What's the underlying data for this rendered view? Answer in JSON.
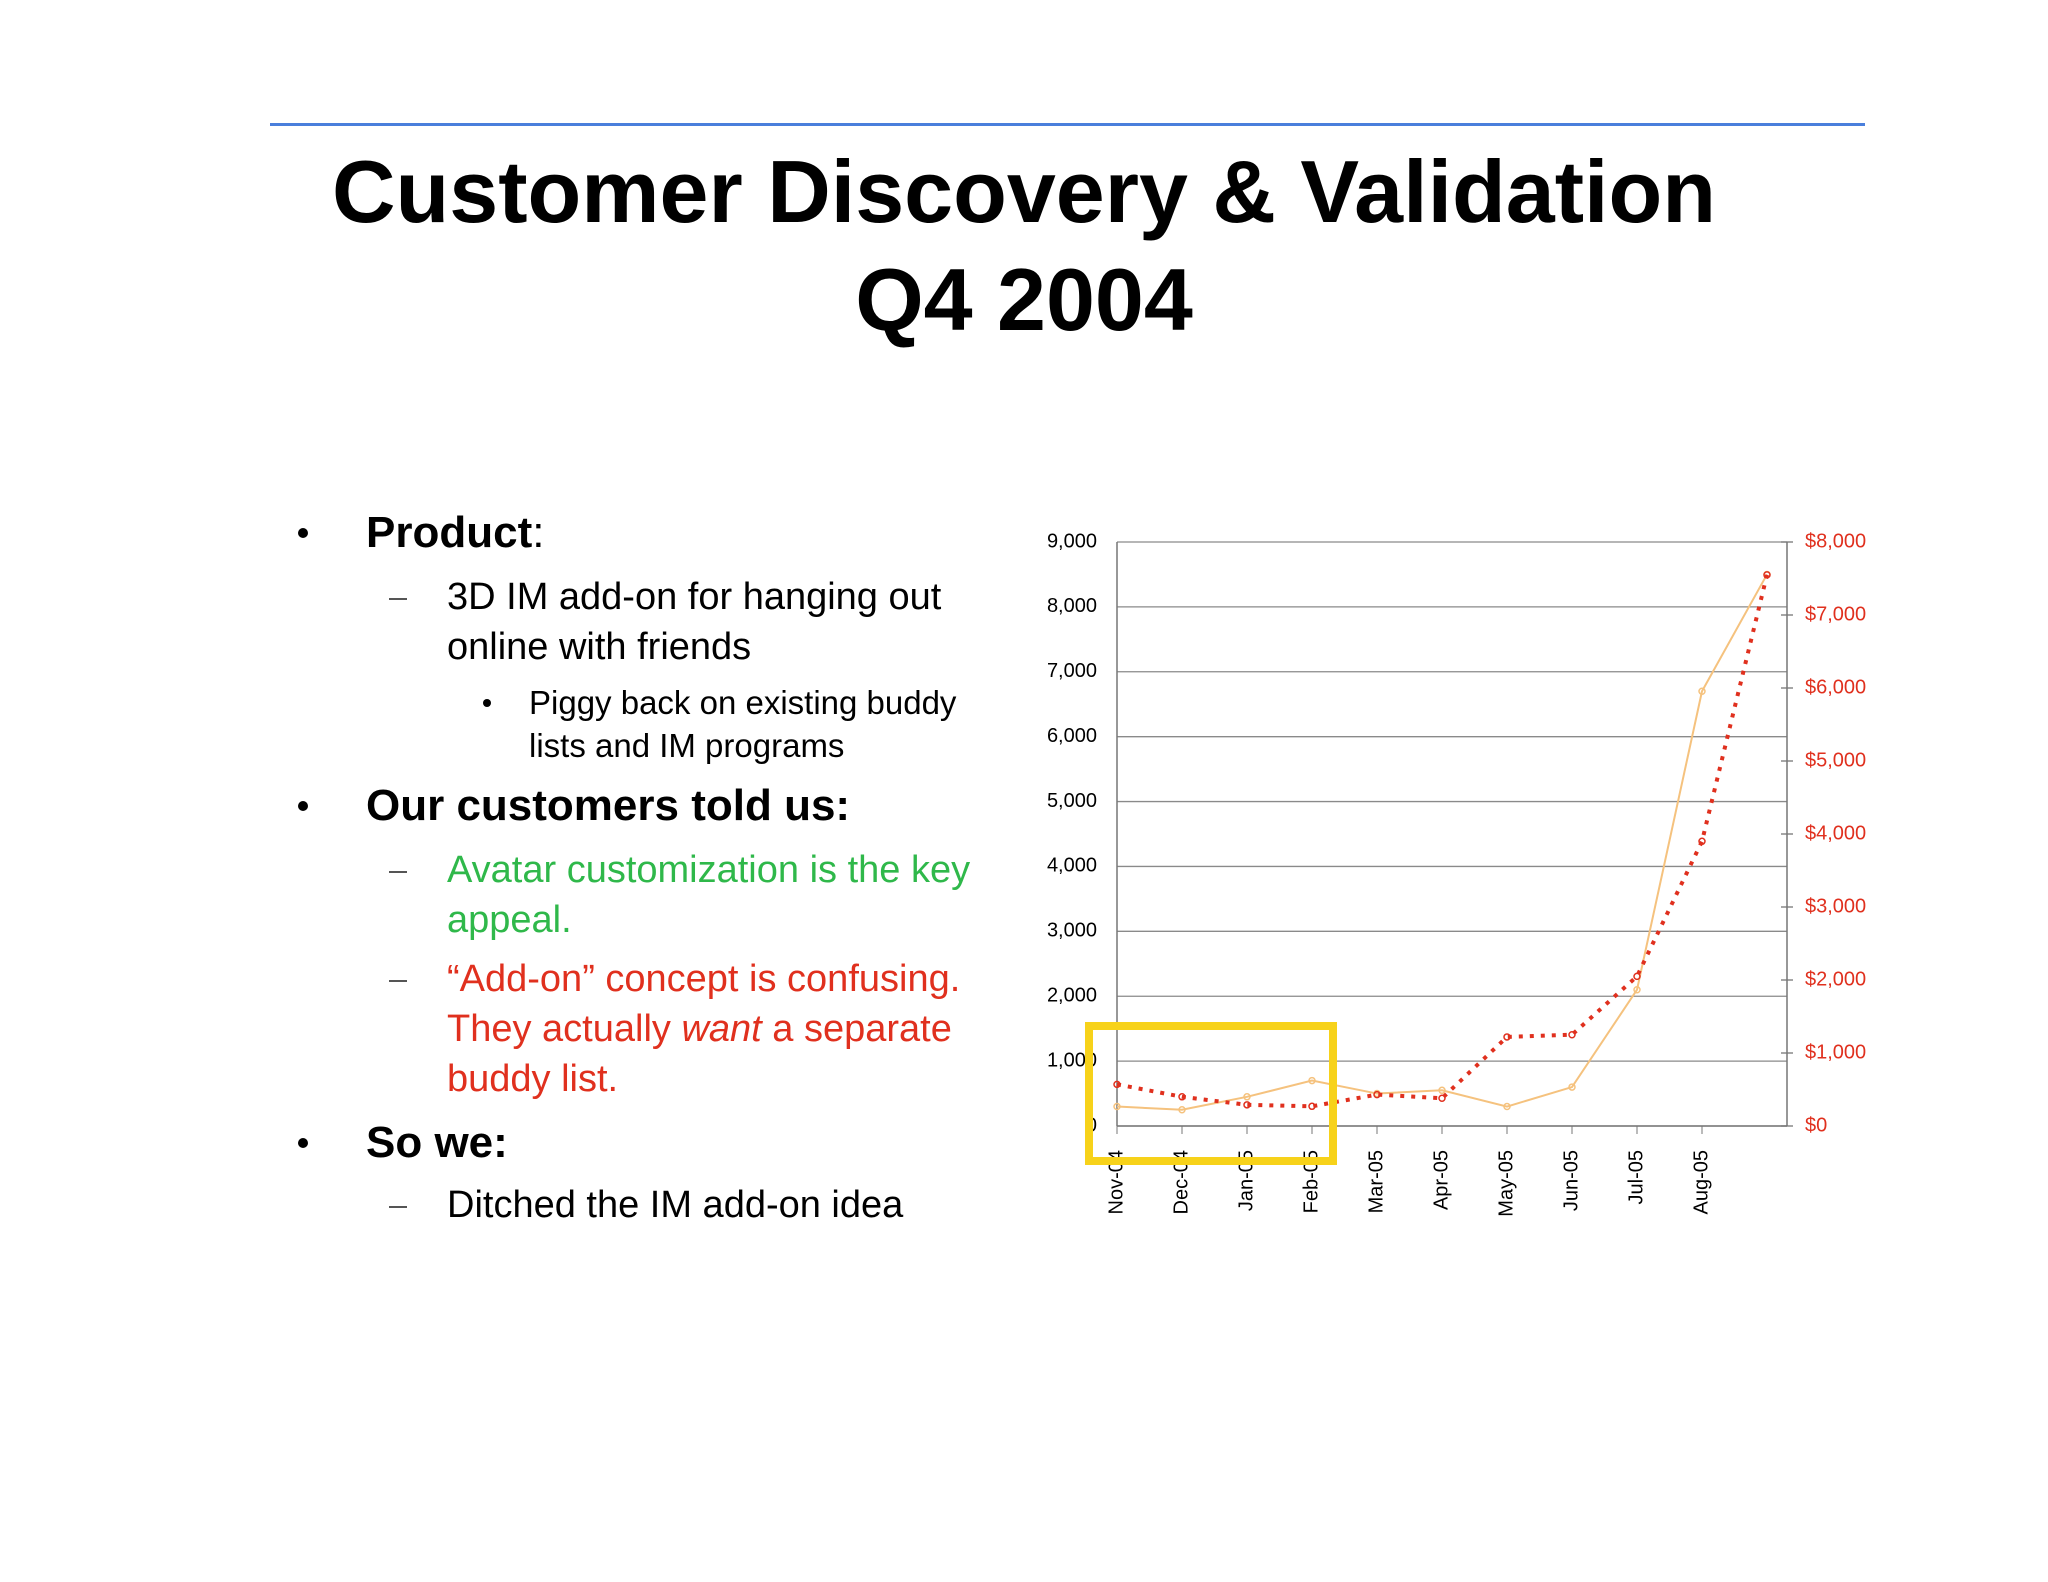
{
  "slide": {
    "title_line1": "Customer Discovery & Validation",
    "title_line2": "Q4 2004",
    "items": [
      {
        "heading": "Product",
        "heading_suffix": ":",
        "sub": [
          {
            "text": "3D IM add-on for hanging out online with friends",
            "sub": [
              "Piggy back on existing buddy lists and IM programs"
            ]
          }
        ]
      },
      {
        "heading": "Our customers told us:",
        "sub": [
          {
            "text": "Avatar customization is the key appeal."
          },
          {
            "text_parts": [
              "“Add-on” concept is confusing. They actually ",
              "want",
              " a separate buddy list."
            ]
          }
        ]
      },
      {
        "heading": "So we:",
        "sub": [
          {
            "text": "Ditched the IM add-on idea"
          }
        ]
      }
    ]
  },
  "chart_data": {
    "type": "line",
    "categories": [
      "Nov-04",
      "Dec-04",
      "Jan-05",
      "Feb-05",
      "Mar-05",
      "Apr-05",
      "May-05",
      "Jun-05",
      "Jul-05",
      "Aug-05",
      null
    ],
    "series": [
      {
        "color": "#f5c27e",
        "values": [
          300,
          250,
          450,
          700,
          500,
          550,
          300,
          600,
          2100,
          6700,
          8500
        ]
      },
      {
        "color": "#e0301e",
        "axis": "y2",
        "values": [
          570,
          400,
          290,
          270,
          430,
          380,
          1220,
          1250,
          2050,
          3900,
          7550
        ]
      }
    ],
    "ylim": [
      0,
      9000
    ],
    "yticks": [
      0,
      {
        "value": 1000,
        "label": "1,000"
      },
      {
        "value": 2000,
        "label": "2,000"
      },
      {
        "value": 3000,
        "label": "3,000"
      },
      {
        "value": 4000,
        "label": "4,000"
      },
      {
        "value": 5000,
        "label": "5,000"
      },
      {
        "value": 6000,
        "label": "6,000"
      },
      {
        "value": 7000,
        "label": "7,000"
      },
      {
        "value": 8000,
        "label": "8,000"
      },
      {
        "value": 9000,
        "label": "9,000"
      }
    ],
    "y2lim": [
      0,
      8000
    ],
    "y2ticks": [
      {
        "value": 0,
        "label": "$0"
      },
      {
        "value": 1000,
        "label": "$1,000"
      },
      {
        "value": 2000,
        "label": "$2,000"
      },
      {
        "value": 3000,
        "label": "$3,000"
      },
      {
        "value": 4000,
        "label": "$4,000"
      },
      {
        "value": 5000,
        "label": "$5,000"
      },
      {
        "value": 6000,
        "label": "$6,000"
      },
      {
        "value": 7000,
        "label": "$7,000"
      },
      {
        "value": 8000,
        "label": "$8,000"
      }
    ],
    "y2color": "#e0301e",
    "grid": true
  }
}
